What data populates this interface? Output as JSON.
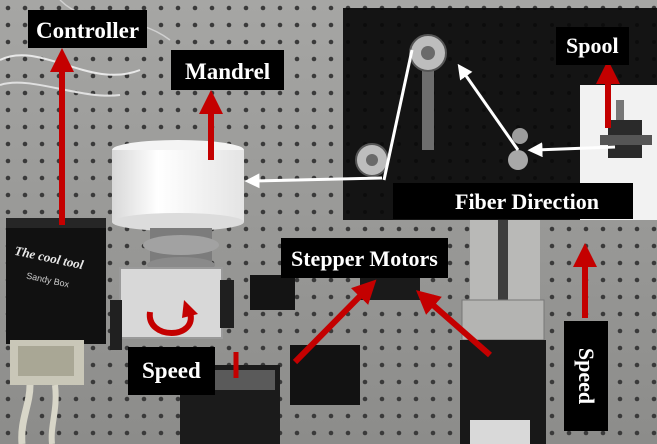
{
  "labels": {
    "controller": "Controller",
    "mandrel": "Mandrel",
    "spool": "Spool",
    "fiber_direction": "Fiber Direction",
    "stepper_motors": "Stepper Motors",
    "speed_left": "Speed",
    "speed_right": "Speed"
  },
  "device_text": {
    "brand": "The cool tool",
    "model": "Sandy Box"
  },
  "colors": {
    "arrow_red": "#c40000",
    "arrow_white": "#ffffff",
    "label_bg": "#000000",
    "label_text": "#ffffff"
  }
}
